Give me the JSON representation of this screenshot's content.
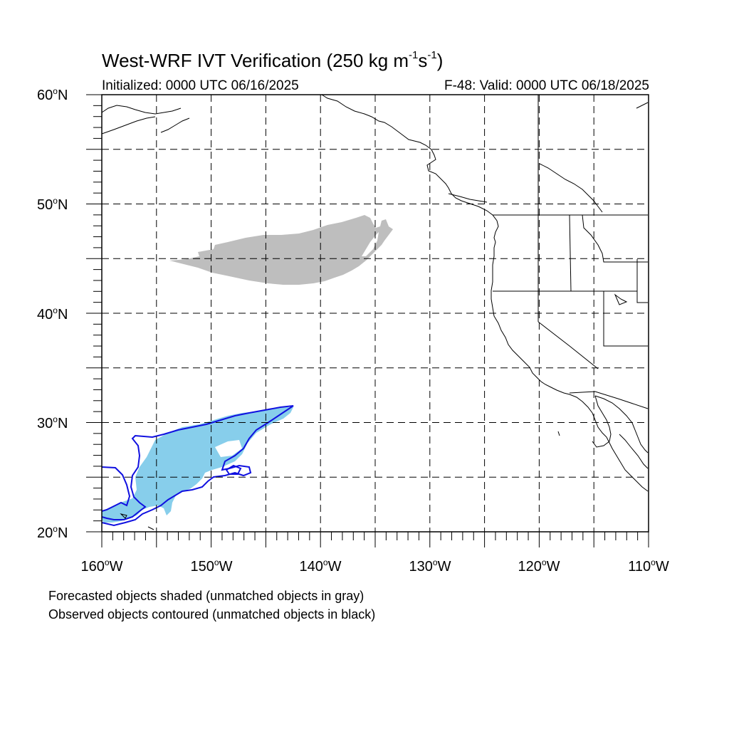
{
  "title": {
    "prefix": "West-WRF IVT Verification (250 kg m",
    "sup1": "-1",
    "mid": "s",
    "sup2": "-1",
    "suffix": ")"
  },
  "initialized": "Initialized: 0000 UTC 06/16/2025",
  "valid": "F-48: Valid: 0000 UTC 06/18/2025",
  "lat_labels": [
    "60",
    "50",
    "40",
    "30",
    "20"
  ],
  "lat_suffix": "N",
  "lon_labels": [
    "160",
    "150",
    "140",
    "130",
    "120",
    "110"
  ],
  "lon_suffix": "W",
  "notes": [
    "Forecasted objects shaded (unmatched objects in gray)",
    "Observed objects contoured (unmatched objects in black)"
  ],
  "map": {
    "lat_range": [
      20,
      60
    ],
    "lon_range": [
      -160,
      -110
    ],
    "grid_interval_deg": 5,
    "gridlines": "dashed",
    "colors": {
      "matched_forecast_fill": "#87ceeb",
      "unmatched_forecast_fill": "#bebebe",
      "matched_observed_contour": "#1010e0",
      "coastline": "#000000"
    },
    "objects": [
      {
        "kind": "forecast",
        "matched": false,
        "center_lat": 45.5,
        "center_lon": -141
      },
      {
        "kind": "forecast",
        "matched": true,
        "center_lat": 26.5,
        "center_lon": -152
      },
      {
        "kind": "observed",
        "matched": true,
        "center_lat": 26.5,
        "center_lon": -151
      }
    ]
  }
}
